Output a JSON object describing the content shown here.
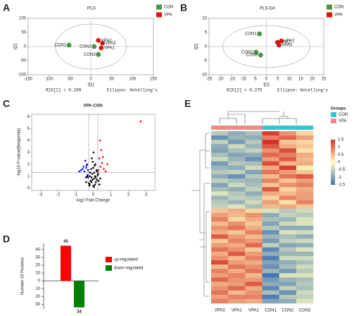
{
  "chart_data": [
    {
      "type": "scatter",
      "label": "A",
      "title": "PCA",
      "xlabel": "t[1]",
      "ylabel": "t[2]",
      "xlim": [
        -150,
        150
      ],
      "xticks": [
        -150,
        -100,
        -50,
        0,
        50,
        100,
        150
      ],
      "ylim": [
        -100,
        100
      ],
      "yticks": [
        -100,
        -50,
        0,
        50,
        100
      ],
      "ellipse": {
        "rx": 85,
        "ry": 80
      },
      "notes": [
        "R2X[2] = 0.209",
        "Ellipse: Hotelling's"
      ],
      "series": [
        {
          "name": "CON",
          "color": "#3f9b3f",
          "x": [
            -52,
            8,
            18
          ],
          "y": [
            5,
            0,
            -28
          ],
          "point_labels": [
            "CON1",
            "CON2",
            "CON3"
          ]
        },
        {
          "name": "VPA",
          "color": "#e01010",
          "x": [
            25,
            18,
            28
          ],
          "y": [
            -5,
            22,
            12
          ],
          "point_labels": [
            "VPA1",
            "VPA2",
            "VPA3"
          ]
        }
      ]
    },
    {
      "type": "scatter",
      "label": "B",
      "title": "PLS-DA",
      "xlabel": "t[1]",
      "ylabel": "t[2]",
      "xlim": [
        -25,
        25
      ],
      "xticks": [
        -25,
        -20,
        -15,
        -10,
        -5,
        0,
        5,
        10,
        15,
        20,
        25
      ],
      "ylim": [
        -10,
        10
      ],
      "yticks": [
        -10,
        -5,
        0,
        5,
        10
      ],
      "ellipse": {
        "rx": 19,
        "ry": 7.5
      },
      "notes": [
        "R2X[2] = 0.275",
        "Ellipse: Hotelling's"
      ],
      "series": [
        {
          "name": "CON",
          "color": "#3f9b3f",
          "x": [
            -3,
            -4.5,
            -2.5
          ],
          "y": [
            4.5,
            -2,
            -3
          ],
          "point_labels": [
            "CON1",
            "CON2",
            "CON3"
          ]
        },
        {
          "name": "VPA",
          "color": "#e01010",
          "x": [
            4.8,
            6.5,
            5.5
          ],
          "y": [
            1.5,
            2,
            0.5
          ],
          "point_labels": [
            "VPA1",
            "VPA2",
            "VPA3"
          ]
        }
      ]
    },
    {
      "type": "volcano",
      "label": "C",
      "title": "VPA-CON",
      "xlabel": "log2 Fold Change",
      "ylabel": "-log10 P-value(Benjamini)",
      "xlim": [
        -3.5,
        3.5
      ],
      "xticks": [
        -3,
        -2,
        -1,
        0,
        1,
        2,
        3
      ],
      "ylim": [
        -0.2,
        6.2
      ],
      "yticks": [
        0,
        1,
        2,
        3,
        4,
        5,
        6
      ],
      "vlines": [
        -0.26,
        0.26
      ],
      "hline": 1.3,
      "series": [
        {
          "color": "#000000",
          "x": [
            -0.2,
            -0.15,
            -0.1,
            -0.05,
            0,
            0.05,
            0.1,
            0.15,
            0.2,
            -0.25,
            0.25,
            -0.12,
            0.08,
            -0.03,
            0.18,
            -0.3,
            0.3,
            -0.4,
            0.4,
            -0.08,
            0.12,
            0.02,
            -0.18,
            0.22,
            0.05,
            -0.22,
            0.28,
            -0.35,
            0.35,
            0.0,
            -0.1,
            0.1,
            -0.2,
            0.15,
            -0.05,
            0.06
          ],
          "y": [
            0.3,
            0.6,
            0.9,
            1.2,
            0.2,
            0.8,
            1.0,
            0.5,
            0.7,
            0.4,
            1.1,
            1.6,
            1.9,
            2.2,
            1.5,
            0.9,
            0.6,
            0.5,
            0.8,
            2.5,
            2.0,
            3.0,
            1.3,
            1.4,
            0.1,
            0.2,
            1.2,
            1.0,
            0.3,
            1.7,
            0.5,
            0.3,
            1.0,
            0.9,
            0.7,
            1.3
          ]
        },
        {
          "color": "#ff0000",
          "x": [
            0.3,
            0.4,
            0.5,
            0.35,
            0.6,
            0.45,
            0.8,
            0.55,
            0.7,
            0.38,
            2.7
          ],
          "y": [
            1.5,
            1.8,
            2.1,
            2.5,
            1.6,
            3.2,
            2.0,
            2.6,
            1.4,
            4.0,
            5.6
          ]
        },
        {
          "color": "#0000ff",
          "x": [
            -0.3,
            -0.4,
            -0.5,
            -0.35,
            -0.6,
            -0.45,
            -0.7,
            -0.38,
            -0.55,
            -0.8,
            -0.32,
            -0.42
          ],
          "y": [
            1.5,
            1.7,
            1.4,
            2.0,
            1.6,
            2.3,
            1.5,
            1.9,
            1.8,
            1.4,
            1.1,
            0.9
          ]
        }
      ]
    },
    {
      "type": "bar",
      "label": "D",
      "ylabel": "Number Of Proteins",
      "ylim": [
        -36,
        48
      ],
      "yticks": [
        40,
        30,
        20,
        10,
        0,
        {
          "value": -10,
          "label": "10"
        },
        {
          "value": -20,
          "label": "20"
        },
        {
          "value": -30,
          "label": "30"
        }
      ],
      "series": [
        {
          "name": "up-regulated",
          "color": "#ff0000",
          "values": [
            45
          ],
          "value_labels": [
            "45"
          ]
        },
        {
          "name": "down-regulated",
          "color": "#008000",
          "values": [
            -34
          ],
          "value_labels": [
            "34"
          ]
        }
      ]
    },
    {
      "type": "heatmap",
      "label": "E",
      "categories": [
        "VPA3",
        "VPA1",
        "VPA2",
        "CON1",
        "CON2",
        "CON3"
      ],
      "column_groups": [
        "VPA",
        "VPA",
        "VPA",
        "CON",
        "CON",
        "CON"
      ],
      "groups_title": "Groups",
      "groups": [
        {
          "name": "CON",
          "color": "#33c6cc"
        },
        {
          "name": "VPA",
          "color": "#f08a84"
        }
      ],
      "clim": [
        -1.5,
        1.5
      ],
      "colorscale": [
        "#4575b4",
        "#ffffbf",
        "#d73027"
      ],
      "colorbar_ticks": [
        1.5,
        1,
        0.5,
        0,
        -0.5,
        -1,
        -1.5
      ],
      "z": [
        [
          -0.6,
          -0.9,
          -0.7,
          1.4,
          0.8,
          0.3
        ],
        [
          -1.2,
          -0.8,
          -0.9,
          0.9,
          1.1,
          0.7
        ],
        [
          -0.5,
          -1.1,
          -0.6,
          1.6,
          0.4,
          0.3
        ],
        [
          -0.9,
          -0.4,
          -0.8,
          1.2,
          0.6,
          0.4
        ],
        [
          -1.0,
          -0.7,
          -0.5,
          0.8,
          1.3,
          0.2
        ],
        [
          -0.7,
          -1.0,
          -0.9,
          1.1,
          0.9,
          0.6
        ],
        [
          -0.4,
          -0.8,
          -1.2,
          0.7,
          1.2,
          0.5
        ],
        [
          -1.1,
          -0.6,
          -0.7,
          1.3,
          0.5,
          0.6
        ],
        [
          -0.8,
          -0.9,
          -0.4,
          0.6,
          1.4,
          0.1
        ],
        [
          -0.6,
          -0.5,
          -1.0,
          1.0,
          0.7,
          0.4
        ],
        [
          -0.9,
          -1.2,
          -0.6,
          0.5,
          1.0,
          1.2
        ],
        [
          -0.5,
          -0.7,
          -0.8,
          0.9,
          0.4,
          0.7
        ],
        [
          -1.0,
          -0.4,
          -0.7,
          0.4,
          0.8,
          0.9
        ],
        [
          -0.7,
          -0.9,
          -0.5,
          1.2,
          0.3,
          0.6
        ],
        [
          -0.3,
          -0.6,
          -0.9,
          0.6,
          0.5,
          0.7
        ],
        [
          -0.8,
          -0.5,
          -0.6,
          0.3,
          0.9,
          0.7
        ],
        [
          -0.6,
          -0.8,
          -0.4,
          0.7,
          0.2,
          0.9
        ],
        [
          -0.5,
          -0.3,
          -0.7,
          0.5,
          0.6,
          0.4
        ],
        [
          0.4,
          0.6,
          0.3,
          -0.3,
          -0.6,
          -0.4
        ],
        [
          0.7,
          0.5,
          0.8,
          -0.9,
          -0.5,
          -0.6
        ],
        [
          0.9,
          0.3,
          0.6,
          -0.7,
          -0.8,
          -0.3
        ],
        [
          0.5,
          0.8,
          0.4,
          -1.0,
          -0.4,
          -0.3
        ],
        [
          0.8,
          1.0,
          0.6,
          -0.6,
          -0.9,
          -0.9
        ],
        [
          0.6,
          0.4,
          0.9,
          -1.2,
          -0.3,
          -0.4
        ],
        [
          1.2,
          0.7,
          0.5,
          -0.8,
          -0.7,
          -0.9
        ],
        [
          0.4,
          0.9,
          0.7,
          -1.1,
          -0.5,
          -0.4
        ],
        [
          0.7,
          0.6,
          1.1,
          -0.5,
          -1.0,
          -0.9
        ],
        [
          1.0,
          0.8,
          0.4,
          -1.3,
          -0.6,
          -0.3
        ],
        [
          0.6,
          1.2,
          0.7,
          -0.9,
          -0.8,
          -0.8
        ],
        [
          0.8,
          0.5,
          0.9,
          -1.4,
          -0.4,
          -0.4
        ],
        [
          1.3,
          0.7,
          0.6,
          -1.0,
          -0.9,
          -0.7
        ],
        [
          0.5,
          1.0,
          0.8,
          -1.2,
          -0.7,
          -0.4
        ],
        [
          0.9,
          0.6,
          1.0,
          -0.8,
          -1.1,
          -0.6
        ],
        [
          0.7,
          0.9,
          0.5,
          -1.5,
          -0.3,
          -0.3
        ],
        [
          1.1,
          0.8,
          0.7,
          -1.1,
          -0.8,
          -0.7
        ],
        [
          0.6,
          0.7,
          1.2,
          -0.9,
          -1.0,
          -0.6
        ],
        [
          0.8,
          1.1,
          0.6,
          -1.3,
          -0.5,
          -0.7
        ],
        [
          1.0,
          0.5,
          0.8,
          -0.7,
          -1.2,
          -0.4
        ],
        [
          0.7,
          0.9,
          0.9,
          -1.4,
          -0.6,
          -0.5
        ],
        [
          0.9,
          0.7,
          0.6,
          -1.0,
          -0.9,
          -0.3
        ]
      ]
    }
  ]
}
